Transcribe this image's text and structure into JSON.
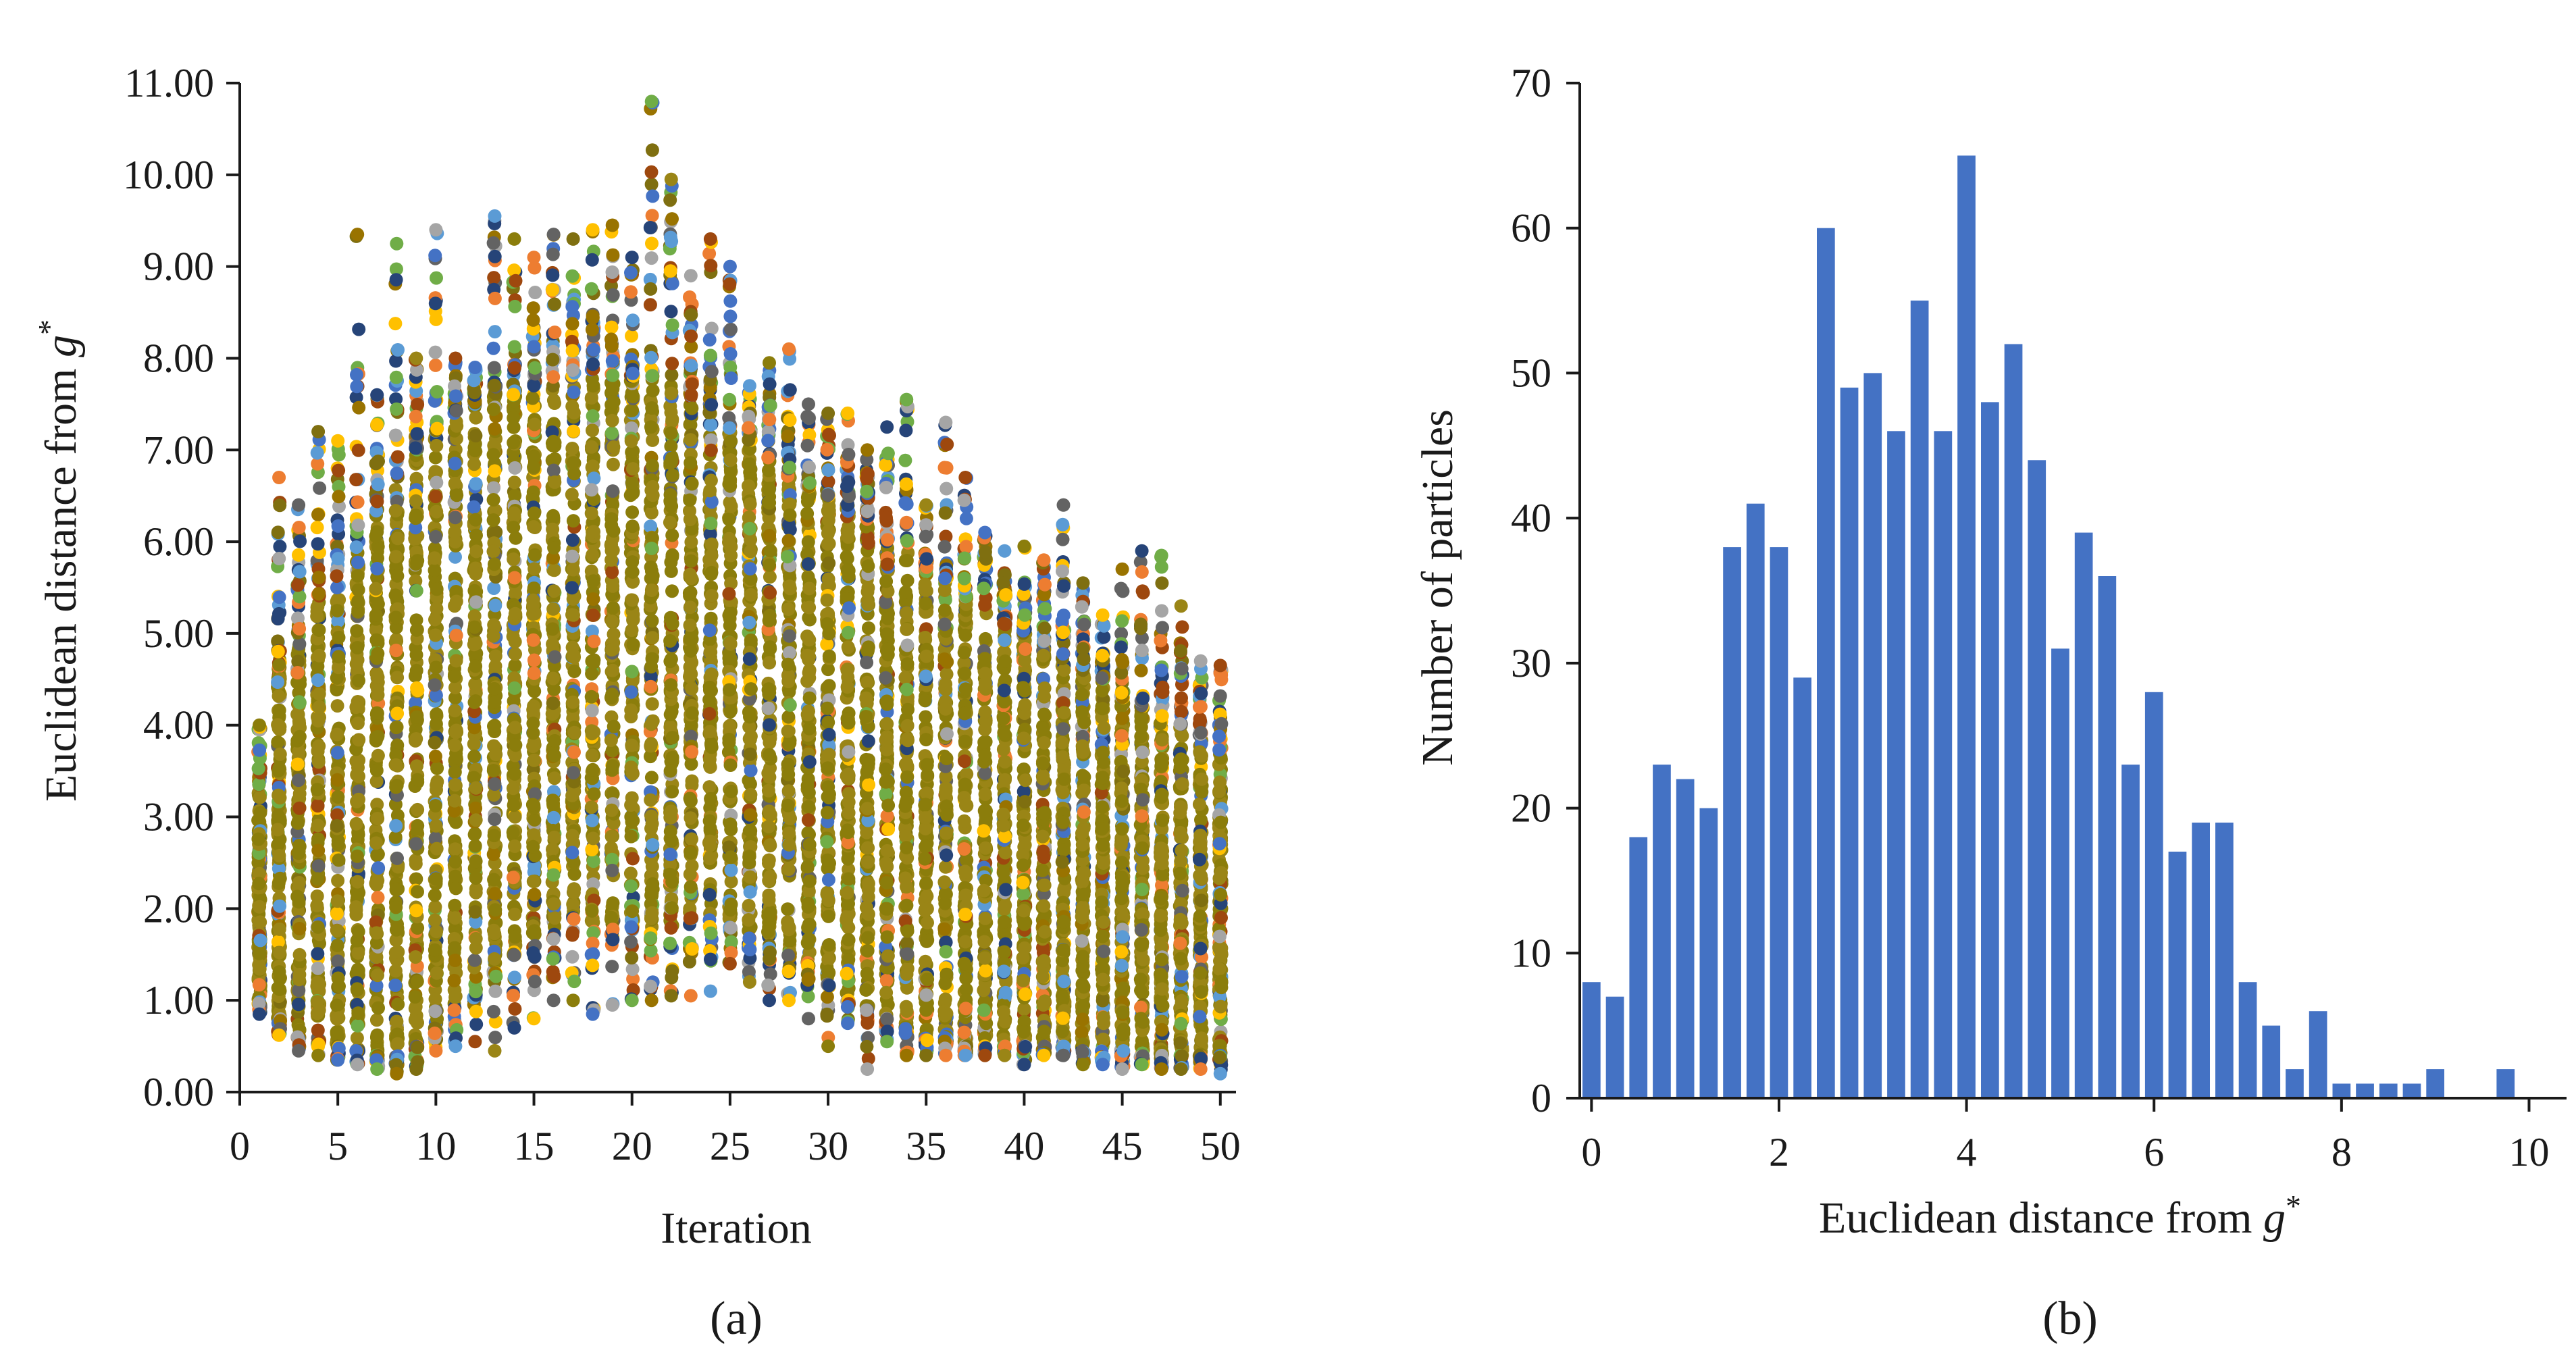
{
  "figure": {
    "panel_a_label": "(a)",
    "panel_b_label": "(b)"
  },
  "colors": {
    "hist_bar": "#4472C4",
    "axis": "#1a1a1a",
    "scatter_palette": [
      "#8B7D0B",
      "#9A8516",
      "#7F6F10",
      "#4472C4",
      "#264478",
      "#ED7D31",
      "#A5A5A5",
      "#FFC000",
      "#5B9BD5",
      "#70AD47",
      "#636363",
      "#9E480E",
      "#997300"
    ]
  },
  "chart_data": [
    {
      "type": "scatter",
      "title": "",
      "xlabel": "Iteration",
      "ylabel_prefix": "Euclidean distance from ",
      "ylabel_symbol": "g",
      "ylabel_sup": "*",
      "xlim": [
        0,
        50.8
      ],
      "ylim": [
        0,
        11
      ],
      "xticks": [
        0,
        5,
        10,
        15,
        20,
        25,
        30,
        35,
        40,
        45,
        50
      ],
      "xtick_labels": [
        "0",
        "5",
        "10",
        "15",
        "20",
        "25",
        "30",
        "35",
        "40",
        "45",
        "50"
      ],
      "yticks": [
        0,
        1,
        2,
        3,
        4,
        5,
        6,
        7,
        8,
        9,
        10,
        11
      ],
      "ytick_labels": [
        "0.00",
        "1.00",
        "2.00",
        "3.00",
        "4.00",
        "5.00",
        "6.00",
        "7.00",
        "8.00",
        "9.00",
        "10.00",
        "11.00"
      ],
      "grid": false,
      "x": [
        1,
        2,
        3,
        4,
        5,
        6,
        7,
        8,
        9,
        10,
        11,
        12,
        13,
        14,
        15,
        16,
        17,
        18,
        19,
        20,
        21,
        22,
        23,
        24,
        25,
        26,
        27,
        28,
        29,
        30,
        31,
        32,
        33,
        34,
        35,
        36,
        37,
        38,
        39,
        40,
        41,
        42,
        43,
        44,
        45,
        46,
        47,
        48,
        49,
        50
      ],
      "y_min": [
        0.85,
        0.62,
        0.45,
        0.4,
        0.35,
        0.3,
        0.25,
        0.2,
        0.25,
        0.45,
        0.5,
        0.55,
        0.45,
        0.7,
        0.8,
        1.0,
        1.0,
        0.85,
        0.95,
        1.0,
        1.0,
        1.05,
        1.05,
        1.1,
        1.4,
        1.2,
        1.0,
        1.0,
        0.8,
        0.5,
        0.75,
        0.25,
        0.55,
        0.4,
        0.4,
        0.4,
        0.4,
        0.4,
        0.4,
        0.3,
        0.4,
        0.4,
        0.3,
        0.3,
        0.25,
        0.3,
        0.25,
        0.25,
        0.25,
        0.2
      ],
      "y_max": [
        4.0,
        6.7,
        6.4,
        7.2,
        7.1,
        9.35,
        7.6,
        9.25,
        8.0,
        9.4,
        8.0,
        7.9,
        9.55,
        9.3,
        9.1,
        9.35,
        9.3,
        9.4,
        9.45,
        9.1,
        10.8,
        9.95,
        8.9,
        9.3,
        9.0,
        7.7,
        7.95,
        8.1,
        7.5,
        7.4,
        7.4,
        7.0,
        7.25,
        7.55,
        6.4,
        7.3,
        6.7,
        6.1,
        5.9,
        5.95,
        5.8,
        6.4,
        5.55,
        5.2,
        5.7,
        5.9,
        5.85,
        5.3,
        4.7,
        4.65
      ],
      "y_bulk_top": [
        3.3,
        4.8,
        5.0,
        5.4,
        5.5,
        5.9,
        6.3,
        6.7,
        7.0,
        7.2,
        7.4,
        7.5,
        7.6,
        7.6,
        7.7,
        7.7,
        7.8,
        7.8,
        7.8,
        7.8,
        7.8,
        7.7,
        7.6,
        7.4,
        7.2,
        7.1,
        6.9,
        6.8,
        6.6,
        6.5,
        6.4,
        6.2,
        6.0,
        5.9,
        5.7,
        5.6,
        5.4,
        5.3,
        5.1,
        5.0,
        4.9,
        4.7,
        4.6,
        4.5,
        4.3,
        4.2,
        4.1,
        4.0,
        3.9,
        3.7
      ],
      "y_bulk_bottom": [
        1.0,
        0.8,
        0.6,
        0.55,
        0.5,
        0.45,
        0.4,
        0.4,
        0.5,
        0.7,
        0.9,
        1.1,
        1.3,
        1.5,
        1.7,
        1.8,
        1.9,
        1.8,
        1.8,
        1.8,
        1.8,
        1.8,
        1.9,
        1.9,
        1.8,
        1.7,
        1.6,
        1.5,
        1.4,
        1.2,
        1.0,
        0.9,
        0.8,
        0.7,
        0.6,
        0.6,
        0.5,
        0.5,
        0.5,
        0.5,
        0.5,
        0.5,
        0.45,
        0.45,
        0.45,
        0.4,
        0.4,
        0.4,
        0.4,
        0.4
      ]
    },
    {
      "type": "bar",
      "title": "",
      "xlabel_prefix": "Euclidean distance from ",
      "xlabel_symbol": "g",
      "xlabel_sup": "*",
      "ylabel": "Number of particles",
      "bin_width": 0.25,
      "bin_start": 0,
      "xlim": [
        -0.125,
        10.4
      ],
      "ylim": [
        0,
        70
      ],
      "xticks": [
        0,
        2,
        4,
        6,
        8,
        10
      ],
      "xtick_labels": [
        "0",
        "2",
        "4",
        "6",
        "8",
        "10"
      ],
      "yticks": [
        0,
        10,
        20,
        30,
        40,
        50,
        60,
        70
      ],
      "ytick_labels": [
        "0",
        "10",
        "20",
        "30",
        "40",
        "50",
        "60",
        "70"
      ],
      "grid": false,
      "values": [
        8,
        7,
        18,
        23,
        22,
        20,
        38,
        41,
        38,
        29,
        60,
        49,
        50,
        46,
        55,
        46,
        65,
        48,
        52,
        44,
        31,
        39,
        36,
        23,
        28,
        17,
        19,
        19,
        8,
        5,
        2,
        6,
        1,
        1,
        1,
        1,
        2,
        0,
        0,
        2,
        0,
        0
      ]
    }
  ]
}
